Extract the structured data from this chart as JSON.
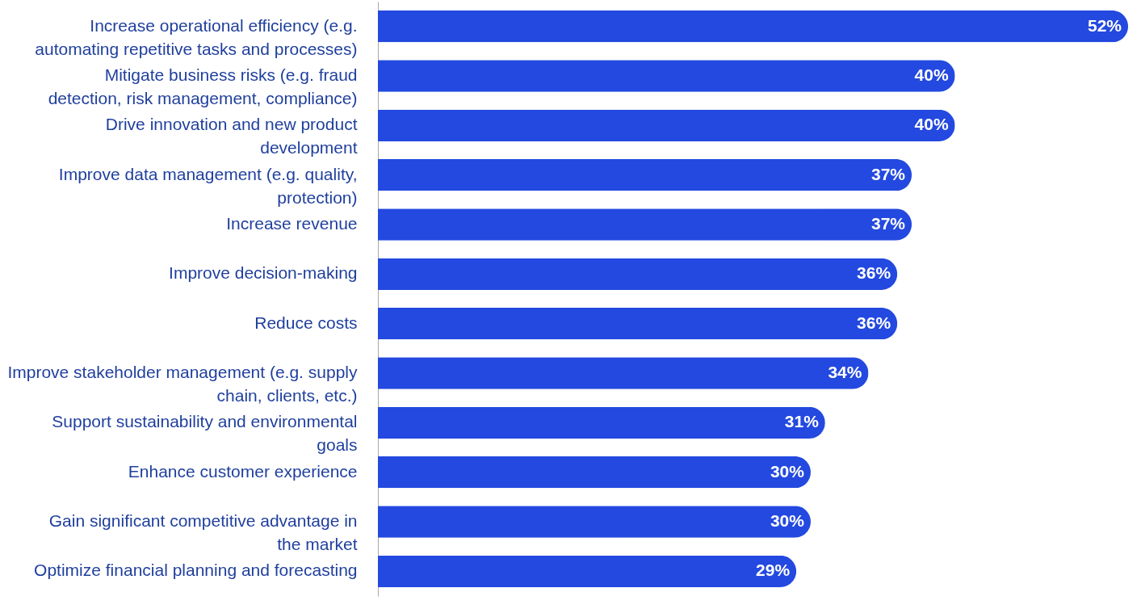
{
  "chart_data": {
    "type": "bar",
    "orientation": "horizontal",
    "categories": [
      "Increase operational efficiency (e.g. automating repetitive tasks and processes)",
      "Mitigate business risks (e.g. fraud detection, risk management, compliance)",
      "Drive innovation and new product development",
      "Improve data management (e.g. quality, protection)",
      "Increase revenue",
      "Improve decision-making",
      "Reduce costs",
      "Improve stakeholder management (e.g. supply chain, clients, etc.)",
      "Support sustainability and environmental goals",
      "Enhance customer experience",
      "Gain significant competitive advantage in the market",
      "Optimize financial planning and forecasting"
    ],
    "values": [
      52,
      40,
      40,
      37,
      37,
      36,
      36,
      34,
      31,
      30,
      30,
      29
    ],
    "value_labels": [
      "52%",
      "40%",
      "40%",
      "37%",
      "37%",
      "36%",
      "36%",
      "34%",
      "31%",
      "30%",
      "30%",
      "29%"
    ],
    "color": "#2349e0"
  }
}
